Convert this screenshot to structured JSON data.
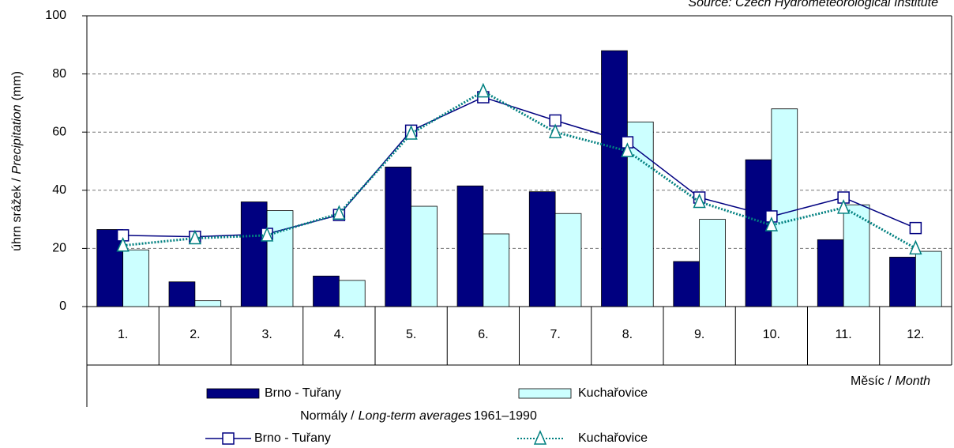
{
  "chart_data": {
    "type": "bar",
    "source": "Source: Czech Hydrometeorological Institute",
    "y_label": {
      "plain": "úhrn srážek /",
      "italic": "Precipitation",
      "unit": "(mm)"
    },
    "x_label": {
      "plain": "Měsíc /",
      "italic": "Month"
    },
    "normals_caption": {
      "plain": "Normály /",
      "italic": "Long-term averages",
      "period": "1961–1990"
    },
    "categories": [
      "1.",
      "2.",
      "3.",
      "4.",
      "5.",
      "6.",
      "7.",
      "8.",
      "9.",
      "10.",
      "11.",
      "12."
    ],
    "ylim": [
      0,
      100
    ],
    "yticks": [
      0,
      20,
      40,
      60,
      80,
      100
    ],
    "grid": true,
    "series": [
      {
        "name": "Brno - Tuřany",
        "type": "bar",
        "color": "#000080",
        "values": [
          26.5,
          8.5,
          36,
          10.5,
          48,
          41.5,
          39.5,
          88,
          15.5,
          50.5,
          23,
          17
        ]
      },
      {
        "name": "Kuchařovice",
        "type": "bar",
        "color": "#ccffff",
        "values": [
          19.5,
          2,
          33,
          9,
          34.5,
          25,
          32,
          63.5,
          30,
          68,
          35,
          19
        ]
      },
      {
        "name": "Brno - Tuřany",
        "type": "line",
        "color": "#000080",
        "values": [
          24.5,
          24,
          25,
          31.5,
          60.5,
          72,
          64,
          56.5,
          37.5,
          31,
          37.5,
          27
        ]
      },
      {
        "name": "Kuchařovice",
        "type": "line",
        "color": "#008080",
        "dotted": true,
        "values": [
          21,
          23.5,
          24.5,
          32,
          59.5,
          74,
          60,
          53.5,
          36,
          28,
          34,
          20
        ]
      }
    ]
  }
}
